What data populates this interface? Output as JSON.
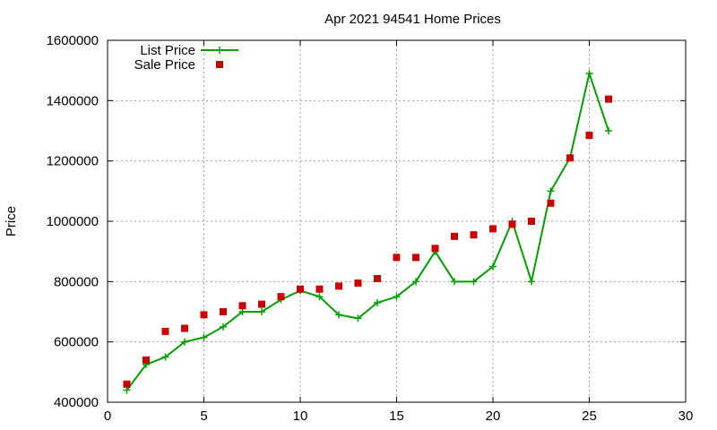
{
  "chart_data": {
    "type": "line",
    "title": "Apr 2021 94541 Home Prices",
    "xlabel": "",
    "ylabel": "Price",
    "xlim": [
      0,
      30
    ],
    "ylim": [
      400000,
      1600000
    ],
    "xticks": [
      0,
      5,
      10,
      15,
      20,
      25,
      30
    ],
    "yticks": [
      400000,
      600000,
      800000,
      1000000,
      1200000,
      1400000,
      1600000
    ],
    "grid": true,
    "legend_position": "top-left",
    "series": [
      {
        "name": "List Price",
        "style": "line-points",
        "color": "#00a000",
        "x": [
          1,
          2,
          3,
          4,
          5,
          6,
          7,
          8,
          9,
          10,
          11,
          12,
          13,
          14,
          15,
          16,
          17,
          18,
          19,
          20,
          21,
          22,
          23,
          24,
          25,
          26
        ],
        "y": [
          440000,
          525000,
          550000,
          600000,
          615000,
          650000,
          700000,
          700000,
          740000,
          770000,
          750000,
          690000,
          678000,
          730000,
          750000,
          800000,
          900000,
          800000,
          800000,
          850000,
          1000000,
          800000,
          1100000,
          1210000,
          1490000,
          1300000
        ]
      },
      {
        "name": "Sale Price",
        "style": "points",
        "color": "#cc0000",
        "x": [
          1,
          2,
          3,
          4,
          5,
          6,
          7,
          8,
          9,
          10,
          11,
          12,
          13,
          14,
          15,
          16,
          17,
          18,
          19,
          20,
          21,
          22,
          23,
          24,
          25,
          26
        ],
        "y": [
          460000,
          540000,
          635000,
          645000,
          690000,
          700000,
          720000,
          725000,
          750000,
          775000,
          775000,
          785000,
          795000,
          810000,
          880000,
          880000,
          910000,
          950000,
          955000,
          975000,
          990000,
          1000000,
          1060000,
          1210000,
          1285000,
          1405000
        ]
      }
    ]
  }
}
